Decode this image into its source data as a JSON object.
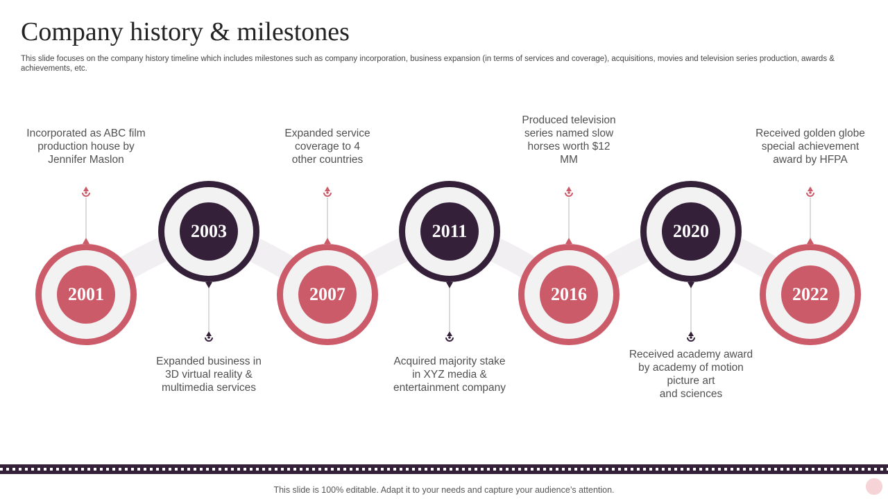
{
  "title": "Company history & milestones",
  "subtitle": "This slide focuses on the company history timeline which includes milestones such as company incorporation, business expansion (in terms of services and coverage), acquisitions, movies and television series production, awards & achievements, etc.",
  "colors": {
    "pink": "#cc5b6a",
    "plum": "#35203a",
    "connector": "#f1eff1",
    "ring_inner": "#f3f2f3"
  },
  "milestones": [
    {
      "year": "2001",
      "description": "Incorporated as ABC film\nproduction house by\nJennifer Maslon",
      "color": "pink"
    },
    {
      "year": "2003",
      "description": "Expanded business in\n3D virtual reality &\nmultimedia services",
      "color": "plum"
    },
    {
      "year": "2007",
      "description": "Expanded service\ncoverage to 4\nother countries",
      "color": "pink"
    },
    {
      "year": "2011",
      "description": "Acquired majority stake\nin XYZ media &\nentertainment company",
      "color": "plum"
    },
    {
      "year": "2016",
      "description": "Produced television\nseries named slow\nhorses worth $12\nMM",
      "color": "pink"
    },
    {
      "year": "2020",
      "description": "Received academy award\nby academy of motion\npicture art\nand sciences",
      "color": "plum"
    },
    {
      "year": "2022",
      "description": "Received golden globe\nspecial achievement\naward by HFPA",
      "color": "pink"
    }
  ],
  "footer": {
    "text": "This slide is 100% editable. Adapt it to your needs and capture your audience’s attention."
  }
}
